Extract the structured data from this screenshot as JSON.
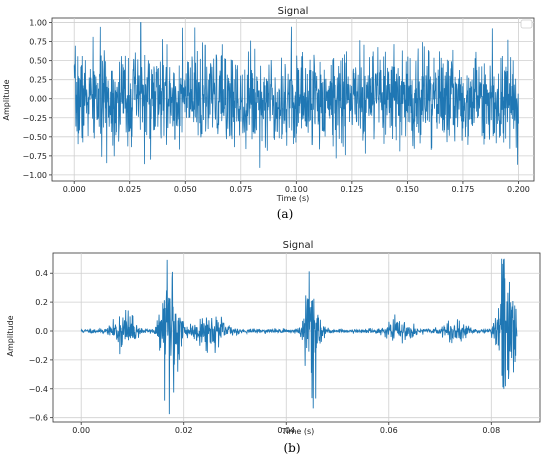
{
  "chart_data": [
    {
      "type": "line",
      "title": "Signal",
      "xlabel": "Time (s)",
      "ylabel": "Amplitude",
      "caption": "(a)",
      "grid": true,
      "legend": "top-right",
      "series": [
        {
          "color": "#1f77b4"
        }
      ],
      "xlim": [
        -0.01,
        0.207
      ],
      "ylim": [
        -1.08,
        1.06
      ],
      "xticks": [
        0.0,
        0.025,
        0.05,
        0.075,
        0.1,
        0.125,
        0.15,
        0.175,
        0.2
      ],
      "xtick_labels": [
        "0.000",
        "0.025",
        "0.050",
        "0.075",
        "0.100",
        "0.125",
        "0.150",
        "0.175",
        "0.200"
      ],
      "yticks": [
        -1.0,
        -0.75,
        -0.5,
        -0.25,
        0.0,
        0.25,
        0.5,
        0.75,
        1.0
      ],
      "ytick_labels": [
        "−1.00",
        "−0.75",
        "−0.50",
        "−0.25",
        "0.00",
        "0.25",
        "0.50",
        "0.75",
        "1.00"
      ],
      "signal": {
        "kind": "noise",
        "t_start": 0.0,
        "t_end": 0.2,
        "n": 1600,
        "amplitude": 0.55,
        "peak": 1.0
      }
    },
    {
      "type": "line",
      "title": "Signal",
      "xlabel": "Time (s)",
      "ylabel": "Amplitude",
      "caption": "(b)",
      "grid": true,
      "series": [
        {
          "color": "#1f77b4"
        }
      ],
      "xlim": [
        -0.0055,
        0.0895
      ],
      "ylim": [
        -0.63,
        0.54
      ],
      "xticks": [
        0.0,
        0.02,
        0.04,
        0.06,
        0.08
      ],
      "xtick_labels": [
        "0.00",
        "0.02",
        "0.04",
        "0.06",
        "0.08"
      ],
      "yticks": [
        -0.6,
        -0.4,
        -0.2,
        0.0,
        0.2,
        0.4
      ],
      "ytick_labels": [
        "−0.6",
        "−0.4",
        "−0.2",
        "0.0",
        "0.2",
        "0.4"
      ],
      "signal": {
        "kind": "bursts",
        "t_start": 0.0,
        "t_end": 0.085,
        "n": 1400,
        "baseline": 0.012,
        "bursts": [
          {
            "t": 0.0175,
            "amp": 0.5,
            "width": 0.0012
          },
          {
            "t": 0.045,
            "amp": 0.48,
            "width": 0.001
          },
          {
            "t": 0.083,
            "amp": 0.46,
            "width": 0.0012
          },
          {
            "t": 0.0085,
            "amp": 0.13,
            "width": 0.0015
          },
          {
            "t": 0.025,
            "amp": 0.1,
            "width": 0.0025
          },
          {
            "t": 0.062,
            "amp": 0.06,
            "width": 0.002
          },
          {
            "t": 0.073,
            "amp": 0.07,
            "width": 0.0015
          }
        ]
      }
    }
  ]
}
